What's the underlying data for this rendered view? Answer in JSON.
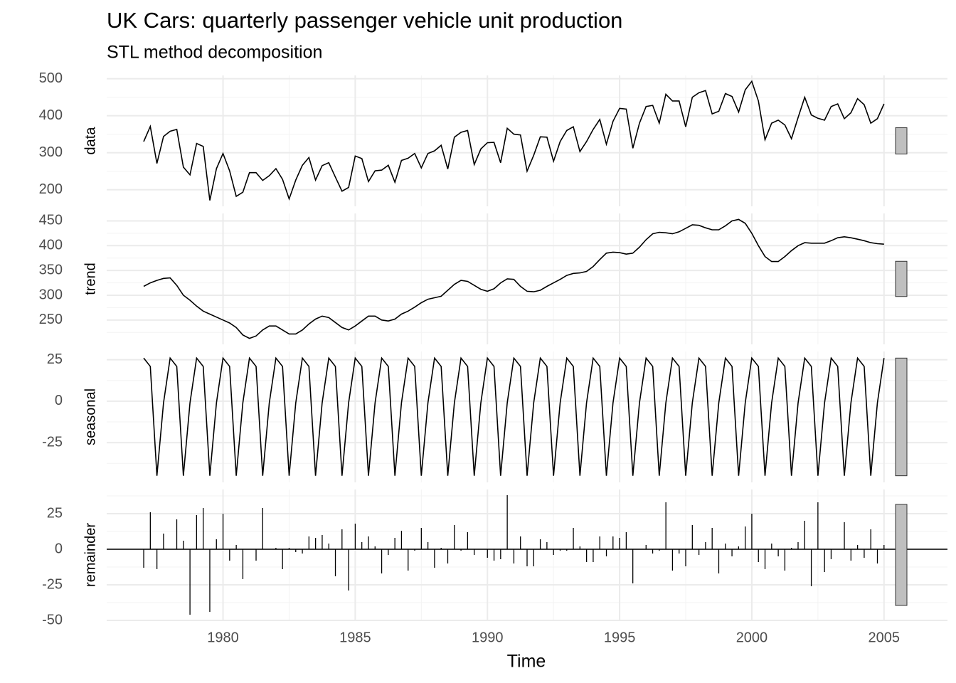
{
  "chart_data": {
    "type": "decomposition",
    "title": "UK Cars: quarterly passenger vehicle unit production",
    "subtitle": "STL method decomposition",
    "x_label": "Time",
    "x": [
      1977,
      1977.25,
      1977.5,
      1977.75,
      1978,
      1978.25,
      1978.5,
      1978.75,
      1979,
      1979.25,
      1979.5,
      1979.75,
      1980,
      1980.25,
      1980.5,
      1980.75,
      1981,
      1981.25,
      1981.5,
      1981.75,
      1982,
      1982.25,
      1982.5,
      1982.75,
      1983,
      1983.25,
      1983.5,
      1983.75,
      1984,
      1984.25,
      1984.5,
      1984.75,
      1985,
      1985.25,
      1985.5,
      1985.75,
      1986,
      1986.25,
      1986.5,
      1986.75,
      1987,
      1987.25,
      1987.5,
      1987.75,
      1988,
      1988.25,
      1988.5,
      1988.75,
      1989,
      1989.25,
      1989.5,
      1989.75,
      1990,
      1990.25,
      1990.5,
      1990.75,
      1991,
      1991.25,
      1991.5,
      1991.75,
      1992,
      1992.25,
      1992.5,
      1992.75,
      1993,
      1993.25,
      1993.5,
      1993.75,
      1994,
      1994.25,
      1994.5,
      1994.75,
      1995,
      1995.25,
      1995.5,
      1995.75,
      1996,
      1996.25,
      1996.5,
      1996.75,
      1997,
      1997.25,
      1997.5,
      1997.75,
      1998,
      1998.25,
      1998.5,
      1998.75,
      1999,
      1999.25,
      1999.5,
      1999.75,
      2000,
      2000.25,
      2000.5,
      2000.75,
      2001,
      2001.25,
      2001.5,
      2001.75,
      2002,
      2002.25,
      2002.5,
      2002.75,
      2003,
      2003.25,
      2003.5,
      2003.75,
      2004,
      2004.25,
      2004.5,
      2004.75,
      2005
    ],
    "xlim": [
      1975.6,
      2007.4
    ],
    "xticks": [
      1980,
      1985,
      1990,
      1995,
      2000,
      2005
    ],
    "grid": true,
    "series": [
      {
        "name": "data",
        "kind": "line",
        "color": "#000000",
        "ylim": [
          155,
          509
        ],
        "yticks": [
          200,
          300,
          400,
          500
        ],
        "values": [
          330,
          371,
          271,
          344,
          358,
          363,
          261,
          240,
          325,
          317,
          171,
          257,
          298,
          251,
          182,
          193,
          246,
          246,
          225,
          238,
          257,
          228,
          175,
          226,
          266,
          287,
          226,
          265,
          273,
          234,
          196,
          206,
          291,
          284,
          222,
          251,
          253,
          266,
          220,
          279,
          285,
          298,
          259,
          298,
          305,
          320,
          256,
          342,
          355,
          360,
          268,
          310,
          327,
          328,
          273,
          366,
          350,
          348,
          250,
          293,
          343,
          342,
          277,
          330,
          360,
          370,
          303,
          330,
          363,
          390,
          323,
          385,
          420,
          418,
          312,
          380,
          425,
          428,
          380,
          458,
          440,
          440,
          370,
          450,
          462,
          468,
          405,
          412,
          460,
          452,
          410,
          470,
          493,
          440,
          335,
          380,
          388,
          375,
          338,
          395,
          450,
          402,
          393,
          388,
          425,
          432,
          392,
          408,
          446,
          430,
          380,
          392,
          432
        ]
      },
      {
        "name": "trend",
        "kind": "line",
        "color": "#000000",
        "ylim": [
          201,
          465
        ],
        "yticks": [
          250,
          300,
          350,
          400,
          450
        ],
        "values": [
          318,
          325,
          330,
          334,
          335,
          320,
          300,
          290,
          278,
          268,
          262,
          256,
          250,
          244,
          235,
          220,
          213,
          218,
          230,
          238,
          238,
          230,
          222,
          222,
          230,
          242,
          252,
          258,
          255,
          245,
          235,
          230,
          238,
          248,
          258,
          258,
          250,
          248,
          252,
          262,
          268,
          276,
          285,
          292,
          295,
          298,
          310,
          322,
          330,
          328,
          320,
          312,
          308,
          313,
          325,
          333,
          332,
          318,
          308,
          307,
          310,
          318,
          325,
          332,
          340,
          344,
          345,
          348,
          358,
          372,
          385,
          387,
          386,
          383,
          385,
          397,
          412,
          424,
          427,
          426,
          424,
          428,
          435,
          442,
          441,
          436,
          432,
          432,
          440,
          450,
          453,
          445,
          425,
          400,
          378,
          368,
          368,
          378,
          390,
          400,
          406,
          405,
          405,
          405,
          410,
          416,
          418,
          416,
          413,
          410,
          406,
          404,
          403
        ]
      },
      {
        "name": "seasonal",
        "kind": "line",
        "color": "#000000",
        "ylim": [
          -49,
          30
        ],
        "yticks": [
          -25,
          0,
          25
        ],
        "values": [
          26,
          21,
          -45,
          -1,
          26,
          21,
          -45,
          -1,
          26,
          21,
          -45,
          -1,
          26,
          21,
          -45,
          -1,
          26,
          21,
          -45,
          -1,
          26,
          21,
          -45,
          -1,
          26,
          21,
          -45,
          -1,
          26,
          21,
          -45,
          -1,
          26,
          21,
          -45,
          -1,
          26,
          21,
          -45,
          -1,
          26,
          21,
          -45,
          -1,
          26,
          21,
          -45,
          -1,
          26,
          21,
          -45,
          -1,
          26,
          21,
          -45,
          -1,
          26,
          21,
          -45,
          -1,
          26,
          21,
          -45,
          -1,
          26,
          21,
          -45,
          -1,
          26,
          21,
          -45,
          -1,
          26,
          21,
          -45,
          -1,
          26,
          21,
          -45,
          -1,
          26,
          21,
          -45,
          -1,
          26,
          21,
          -45,
          -1,
          26,
          21,
          -45,
          -1,
          26,
          21,
          -45,
          -1,
          26,
          21,
          -45,
          -1,
          26,
          21,
          -45,
          -1,
          26,
          21,
          -45,
          -1,
          26,
          21,
          -45,
          -1,
          26
        ]
      },
      {
        "name": "remainder",
        "kind": "bar",
        "color": "#000000",
        "ylim": [
          -50,
          42
        ],
        "yticks": [
          -50,
          -25,
          0,
          25
        ],
        "values": [
          -13,
          26,
          -14,
          11,
          0,
          21,
          6,
          -46,
          24,
          29,
          -44,
          7,
          25,
          -8,
          3,
          -21,
          0,
          -8,
          29,
          0,
          1,
          -14,
          1,
          -2,
          -3,
          9,
          8,
          10,
          4,
          -19,
          14,
          -29,
          18,
          5,
          9,
          2,
          -17,
          -4,
          8,
          13,
          -15,
          -1,
          15,
          5,
          -13,
          1,
          -10,
          17,
          -1,
          12,
          -4,
          0,
          -6,
          -8,
          -7,
          38,
          -10,
          9,
          -12,
          -12,
          7,
          5,
          -4,
          -1,
          -1,
          15,
          2,
          -9,
          -9,
          9,
          -5,
          9,
          8,
          12,
          -24,
          0,
          3,
          -3,
          -1,
          33,
          -15,
          -3,
          -12,
          17,
          -4,
          5,
          15,
          -17,
          4,
          -5,
          2,
          16,
          25,
          -9,
          -14,
          4,
          -5,
          -15,
          1,
          5,
          20,
          -26,
          33,
          -16,
          -7,
          0,
          19,
          -8,
          3,
          -6,
          14,
          -10,
          3
        ]
      }
    ]
  }
}
